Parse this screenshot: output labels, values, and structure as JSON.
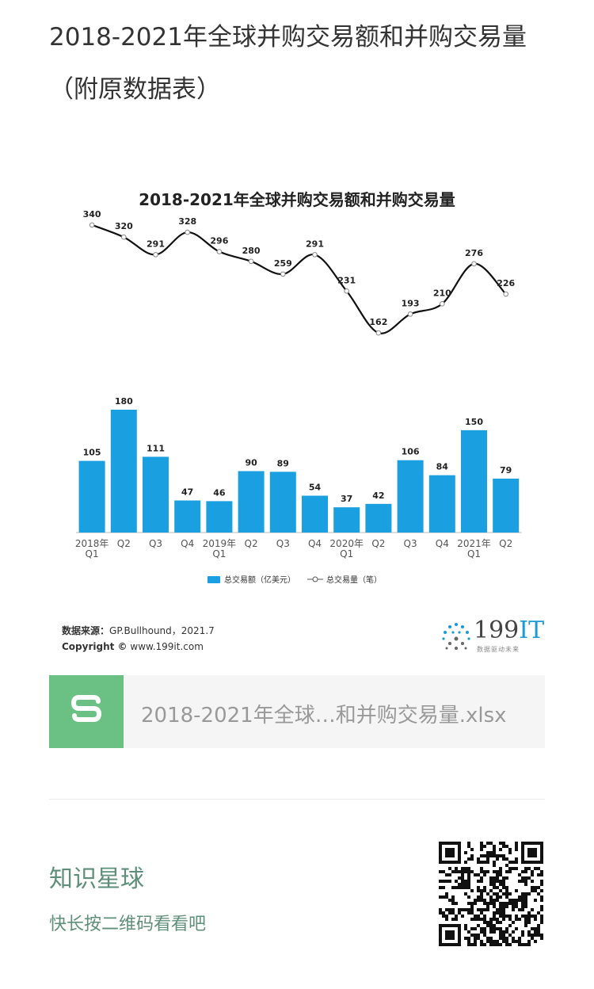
{
  "page_title": "2018-2021年全球并购交易额和并购交易量（附原数据表）",
  "chart_data": {
    "type": "bar",
    "title": "2018-2021年全球并购交易额和并购交易量",
    "categories": [
      "2018年\nQ1",
      "Q2",
      "Q3",
      "Q4",
      "2019年\nQ1",
      "Q2",
      "Q3",
      "Q4",
      "2020年\nQ1",
      "Q2",
      "Q3",
      "Q4",
      "2021年\nQ1",
      "Q2"
    ],
    "series": [
      {
        "name": "总交易额（亿美元）",
        "type": "bar",
        "color": "#1a9fe0",
        "values": [
          105,
          180,
          111,
          47,
          46,
          90,
          89,
          54,
          37,
          42,
          106,
          84,
          150,
          79
        ]
      },
      {
        "name": "总交易量（笔）",
        "type": "line",
        "color": "#111111",
        "values": [
          340,
          320,
          291,
          328,
          296,
          280,
          259,
          291,
          231,
          162,
          193,
          210,
          276,
          226
        ]
      }
    ],
    "legend_position": "bottom"
  },
  "source": {
    "label": "数据来源：",
    "value": "GP.Bullhound，2021.7",
    "copyright_label": "Copyright ©",
    "copyright_value": "www.199it.com"
  },
  "logo": {
    "number": "199",
    "it": "IT",
    "subtitle": "数据驱动未来"
  },
  "file": {
    "name": "2018-2021年全球…和并购交易量.xlsx"
  },
  "footer": {
    "title": "知识星球",
    "subtitle": "快长按二维码看看吧"
  }
}
